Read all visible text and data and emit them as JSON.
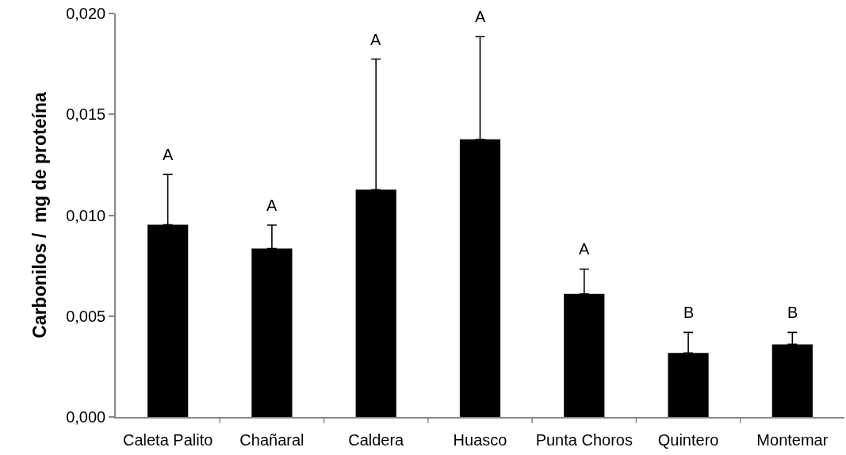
{
  "chart_data": {
    "type": "bar",
    "ylabel": "Carbonilos /  mg de proteína",
    "categories": [
      "Caleta Palito",
      "Chañaral",
      "Caldera",
      "Huasco",
      "Punta Choros",
      "Quintero",
      "Montemar"
    ],
    "series": [
      {
        "color": "#000000",
        "values": [
          0.00953,
          0.00835,
          0.01127,
          0.01376,
          0.0061,
          0.00317,
          0.0036
        ],
        "errors": [
          [
            0.00953,
            0.01202
          ],
          [
            0.00835,
            0.00951
          ],
          [
            0.01127,
            0.01774
          ],
          [
            0.01376,
            0.01885
          ],
          [
            0.0061,
            0.00733
          ],
          [
            0.00317,
            0.00419
          ],
          [
            0.0036,
            0.00419
          ]
        ]
      }
    ],
    "ylim": [
      0,
      0.02
    ],
    "yticks": [
      {
        "value": 0,
        "label": "0,000"
      },
      {
        "value": 0.005,
        "label": "0,005"
      },
      {
        "value": 0.01,
        "label": "0,010"
      },
      {
        "value": 0.015,
        "label": "0,015"
      },
      {
        "value": 0.02,
        "label": "0,020"
      }
    ],
    "annotations": [
      "A",
      "A",
      "A",
      "A",
      "A",
      "B",
      "B"
    ]
  }
}
